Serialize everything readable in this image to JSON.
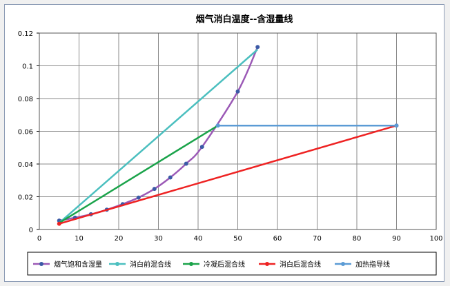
{
  "chart_data": {
    "type": "line",
    "title": "烟气消白温度--含湿量线",
    "xlim": [
      0,
      100
    ],
    "ylim": [
      0,
      0.12
    ],
    "x_ticks": [
      "0",
      "10",
      "20",
      "30",
      "40",
      "50",
      "60",
      "70",
      "80",
      "90",
      "100"
    ],
    "y_ticks": [
      "0",
      "0.02",
      "0.04",
      "0.06",
      "0.08",
      "0.1",
      "0.12"
    ],
    "grid": true,
    "legend_position": "bottom",
    "series": [
      {
        "name": "烟气饱和含湿量",
        "color": "#9b59b6",
        "marker_color": "#3c5aa6",
        "smooth": true,
        "markers": true,
        "points": [
          [
            5,
            0.0054
          ],
          [
            9,
            0.0072
          ],
          [
            13,
            0.0093
          ],
          [
            17,
            0.0121
          ],
          [
            21,
            0.0155
          ],
          [
            25,
            0.0195
          ],
          [
            29,
            0.0248
          ],
          [
            33,
            0.0318
          ],
          [
            37,
            0.0402
          ],
          [
            41,
            0.0505
          ],
          [
            50,
            0.0843
          ],
          [
            55,
            0.1115
          ]
        ]
      },
      {
        "name": "消白前混合线",
        "color": "#4bbfbf",
        "smooth": false,
        "markers": false,
        "points": [
          [
            5,
            0.004
          ],
          [
            55,
            0.11
          ]
        ]
      },
      {
        "name": "冷凝后混合线",
        "color": "#1aa34a",
        "smooth": false,
        "markers": false,
        "points": [
          [
            5,
            0.004
          ],
          [
            45,
            0.0635
          ]
        ]
      },
      {
        "name": "消白后混合线",
        "color": "#ee2222",
        "smooth": false,
        "markers": true,
        "marker_color": "#ee2222",
        "points": [
          [
            5,
            0.0035
          ],
          [
            90,
            0.0635
          ]
        ]
      },
      {
        "name": "加热指导线",
        "color": "#5b9bd5",
        "smooth": false,
        "markers": true,
        "marker_color": "#5b9bd5",
        "points": [
          [
            45,
            0.0635
          ],
          [
            90,
            0.0635
          ]
        ]
      }
    ]
  }
}
